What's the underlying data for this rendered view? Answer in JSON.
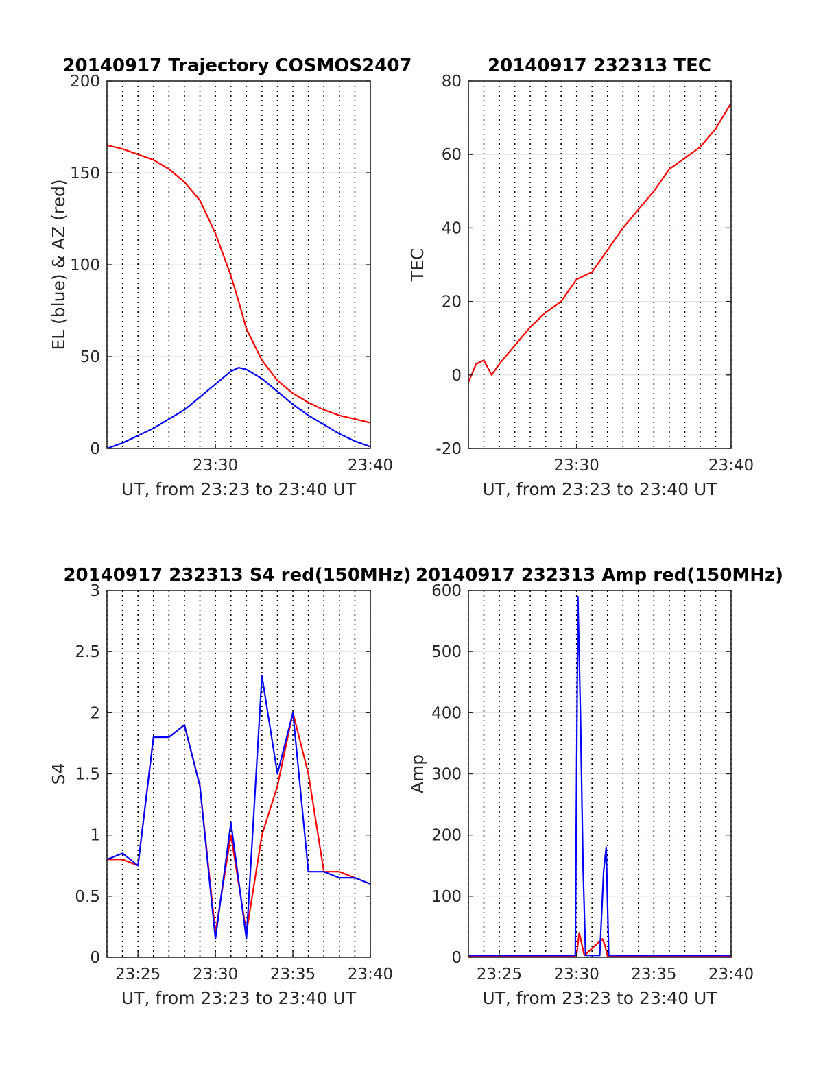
{
  "chart_data": [
    {
      "type": "line",
      "title": "20140917 Trajectory COSMOS2407",
      "xlabel": "UT, from 23:23 to 23:40 UT",
      "ylabel": "EL (blue) & AZ (red)",
      "xlim": [
        "23:23",
        "23:40"
      ],
      "ylim": [
        0,
        200
      ],
      "x_ticks": [
        "23:30",
        "23:40"
      ],
      "y_ticks": [
        "0",
        "50",
        "100",
        "150",
        "200"
      ],
      "grid": true,
      "series": [
        {
          "color": "#ff0000",
          "x": [
            "23:23",
            "23:24",
            "23:25",
            "23:26",
            "23:27",
            "23:28",
            "23:29",
            "23:30",
            "23:31",
            "23:31:30",
            "23:32",
            "23:33",
            "23:34",
            "23:35",
            "23:36",
            "23:37",
            "23:38",
            "23:39",
            "23:40"
          ],
          "values": [
            165,
            163,
            160,
            157,
            152,
            145,
            135,
            117,
            94,
            80,
            65,
            48,
            37,
            30,
            25,
            21,
            18,
            16,
            14
          ]
        },
        {
          "color": "#0000ff",
          "x": [
            "23:23",
            "23:24",
            "23:25",
            "23:26",
            "23:27",
            "23:28",
            "23:29",
            "23:30",
            "23:31",
            "23:31:30",
            "23:32",
            "23:33",
            "23:34",
            "23:35",
            "23:36",
            "23:37",
            "23:38",
            "23:39",
            "23:40"
          ],
          "values": [
            0,
            3,
            7,
            11,
            16,
            21,
            28,
            35,
            42,
            44,
            43,
            38,
            31,
            24,
            18,
            13,
            8,
            4,
            1
          ]
        }
      ]
    },
    {
      "type": "line",
      "title": "20140917 232313 TEC",
      "xlabel": "UT, from 23:23 to 23:40 UT",
      "ylabel": "TEC",
      "xlim": [
        "23:23",
        "23:40"
      ],
      "ylim": [
        -20,
        80
      ],
      "x_ticks": [
        "23:30",
        "23:40"
      ],
      "y_ticks": [
        "-20",
        "0",
        "20",
        "40",
        "60",
        "80"
      ],
      "grid": true,
      "series": [
        {
          "color": "#ff0000",
          "x": [
            "23:23",
            "23:23:30",
            "23:24",
            "23:24:30",
            "23:25",
            "23:26",
            "23:27",
            "23:28",
            "23:29",
            "23:30",
            "23:31",
            "23:32",
            "23:33",
            "23:34",
            "23:35",
            "23:36",
            "23:37",
            "23:38",
            "23:39",
            "23:40"
          ],
          "values": [
            -2,
            3,
            4,
            0,
            3,
            8,
            13,
            17,
            20,
            26,
            28,
            34,
            40,
            45,
            50,
            56,
            59,
            62,
            67,
            74
          ]
        }
      ]
    },
    {
      "type": "line",
      "title": "20140917 232313 S4 red(150MHz)",
      "xlabel": "UT, from 23:23 to 23:40 UT",
      "ylabel": "S4",
      "xlim": [
        "23:23",
        "23:40"
      ],
      "ylim": [
        0,
        3
      ],
      "x_ticks": [
        "23:25",
        "23:30",
        "23:35",
        "23:40"
      ],
      "y_ticks": [
        "0",
        "0.5",
        "1",
        "1.5",
        "2",
        "2.5",
        "3"
      ],
      "grid": true,
      "series": [
        {
          "color": "#ff0000",
          "x": [
            "23:23",
            "23:24",
            "23:25",
            "23:26",
            "23:27",
            "23:28",
            "23:29",
            "23:30",
            "23:31",
            "23:32",
            "23:33",
            "23:34",
            "23:35",
            "23:36",
            "23:37",
            "23:38",
            "23:39",
            "23:40"
          ],
          "values": [
            0.8,
            0.8,
            0.75,
            1.8,
            1.8,
            1.9,
            1.4,
            0.2,
            1.0,
            0.2,
            1.0,
            1.4,
            2.0,
            1.5,
            0.7,
            0.7,
            0.65,
            0.6
          ]
        },
        {
          "color": "#0000ff",
          "x": [
            "23:23",
            "23:24",
            "23:25",
            "23:26",
            "23:27",
            "23:28",
            "23:29",
            "23:30",
            "23:31",
            "23:32",
            "23:33",
            "23:34",
            "23:35",
            "23:36",
            "23:37",
            "23:38",
            "23:39",
            "23:40"
          ],
          "values": [
            0.8,
            0.85,
            0.75,
            1.8,
            1.8,
            1.9,
            1.4,
            0.15,
            1.1,
            0.15,
            2.3,
            1.5,
            2.0,
            0.7,
            0.7,
            0.65,
            0.65,
            0.6
          ]
        }
      ]
    },
    {
      "type": "line",
      "title": "20140917 232313 Amp red(150MHz)",
      "xlabel": "UT, from 23:23 to 23:40 UT",
      "ylabel": "Amp",
      "xlim": [
        "23:23",
        "23:40"
      ],
      "ylim": [
        0,
        600
      ],
      "x_ticks": [
        "23:25",
        "23:30",
        "23:35",
        "23:40"
      ],
      "y_ticks": [
        "0",
        "100",
        "200",
        "300",
        "400",
        "500",
        "600"
      ],
      "grid": true,
      "series": [
        {
          "color": "#ff0000",
          "x": [
            "23:23",
            "23:30",
            "23:30:10",
            "23:30:30",
            "23:31:40",
            "23:31:50",
            "23:32",
            "23:40"
          ],
          "values": [
            2,
            2,
            40,
            3,
            30,
            20,
            2,
            2
          ]
        },
        {
          "color": "#0000ff",
          "x": [
            "23:23",
            "23:29:55",
            "23:30:05",
            "23:30:15",
            "23:30:25",
            "23:30:35",
            "23:31:30",
            "23:31:45",
            "23:31:55",
            "23:32:05",
            "23:40"
          ],
          "values": [
            3,
            3,
            590,
            400,
            150,
            3,
            3,
            140,
            180,
            3,
            3
          ]
        }
      ]
    }
  ]
}
